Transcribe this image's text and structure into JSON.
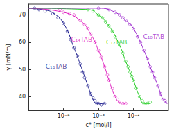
{
  "chart_data": {
    "type": "scatter",
    "x_label": "c* [mol/l]",
    "y_label": "γ [mN/m]",
    "log": "x",
    "grid": false,
    "xlim": [
      1e-05,
      0.1
    ],
    "xticks": [
      {
        "value": 0.0001,
        "label": "10⁻⁴"
      },
      {
        "value": 0.001,
        "label": "10⁻³"
      },
      {
        "value": 0.01,
        "label": "10⁻²"
      }
    ],
    "ylim": [
      35,
      74
    ],
    "yticks": [
      40,
      50,
      60,
      70
    ],
    "series": [
      {
        "name": "C₁₆TAB",
        "color": "#1a1a8c",
        "marker": "circle-open",
        "x": [
          1.5e-05,
          2e-05,
          3e-05,
          5e-05,
          7e-05,
          0.0001,
          0.00013,
          0.00016,
          0.0002,
          0.00025,
          0.0003,
          0.00035,
          0.0004,
          0.0005,
          0.0006,
          0.0007,
          0.0008,
          0.0009,
          0.001,
          0.0012,
          0.0015
        ],
        "values": [
          72.5,
          72,
          71.5,
          70.5,
          69,
          67,
          64,
          61,
          58,
          55,
          52,
          49,
          47,
          44,
          41,
          39.5,
          38.5,
          37.5,
          37.5,
          37,
          37.5
        ],
        "fit": {
          "x": [
            1e-05,
            3e-05,
            5e-05,
            0.0001,
            0.0002,
            0.0003,
            0.0005,
            0.0007,
            0.0009,
            0.0015
          ],
          "values": [
            72.5,
            71.8,
            70.8,
            67,
            58,
            52,
            44,
            39,
            37.5,
            37.5
          ]
        },
        "label_at": [
          6.2e-05,
          51
        ]
      },
      {
        "name": "C₁₄TAB",
        "color": "#e020c0",
        "marker": "circle-open",
        "x": [
          8e-05,
          0.0001,
          0.00015,
          0.0002,
          0.0003,
          0.0004,
          0.0005,
          0.0006,
          0.0008,
          0.001,
          0.0012,
          0.0015,
          0.0018,
          0.002,
          0.0025,
          0.003,
          0.0035,
          0.004,
          0.005,
          0.006
        ],
        "values": [
          72,
          71,
          70.5,
          70,
          68,
          66.5,
          65,
          63,
          60,
          57,
          54.5,
          51,
          48,
          46,
          43,
          40,
          39,
          38,
          37.5,
          37.5
        ],
        "fit": {
          "x": [
            1e-05,
            0.0001,
            0.0003,
            0.0006,
            0.001,
            0.0015,
            0.002,
            0.003,
            0.004,
            0.006
          ],
          "values": [
            72.5,
            71,
            68,
            63,
            57,
            51,
            46,
            40,
            38,
            37.5
          ]
        },
        "label_at": [
          0.00033,
          61
        ]
      },
      {
        "name": "C₁₂TAB",
        "color": "#22cc22",
        "marker": "circle-open",
        "x": [
          0.0005,
          0.0007,
          0.001,
          0.0013,
          0.0016,
          0.002,
          0.0025,
          0.003,
          0.004,
          0.005,
          0.006,
          0.007,
          0.008,
          0.009,
          0.01,
          0.012,
          0.015,
          0.018,
          0.02,
          0.025,
          0.03
        ],
        "values": [
          72,
          71.5,
          70,
          69,
          67.5,
          66,
          64,
          62,
          59,
          56,
          53,
          51,
          49,
          47.5,
          46,
          43,
          40,
          38.5,
          37.5,
          37.5,
          38
        ],
        "fit": {
          "x": [
            1e-05,
            0.0005,
            0.001,
            0.002,
            0.004,
            0.006,
            0.008,
            0.01,
            0.015,
            0.02,
            0.03
          ],
          "values": [
            72.5,
            72,
            70,
            66,
            59,
            53,
            49,
            46,
            40,
            37.5,
            37.5
          ]
        },
        "label_at": [
          0.0033,
          60
        ]
      },
      {
        "name": "C₁₀TAB",
        "color": "#9922cc",
        "marker": "circle-open",
        "x": [
          0.001,
          0.002,
          0.003,
          0.004,
          0.005,
          0.006,
          0.008,
          0.01,
          0.013,
          0.016,
          0.02,
          0.025,
          0.03,
          0.035,
          0.04,
          0.05,
          0.06,
          0.07,
          0.08,
          0.09
        ],
        "values": [
          72.5,
          72,
          71,
          70,
          69,
          68,
          66.5,
          65,
          62,
          60,
          57,
          54,
          51,
          49,
          47,
          44,
          41,
          39,
          38.5,
          38
        ],
        "fit": {
          "x": [
            1e-05,
            0.001,
            0.003,
            0.006,
            0.01,
            0.02,
            0.03,
            0.05,
            0.07,
            0.09
          ],
          "values": [
            72.5,
            72.5,
            71,
            68,
            65,
            57,
            51,
            44,
            39,
            38
          ]
        },
        "label_at": [
          0.038,
          62
        ]
      }
    ]
  }
}
